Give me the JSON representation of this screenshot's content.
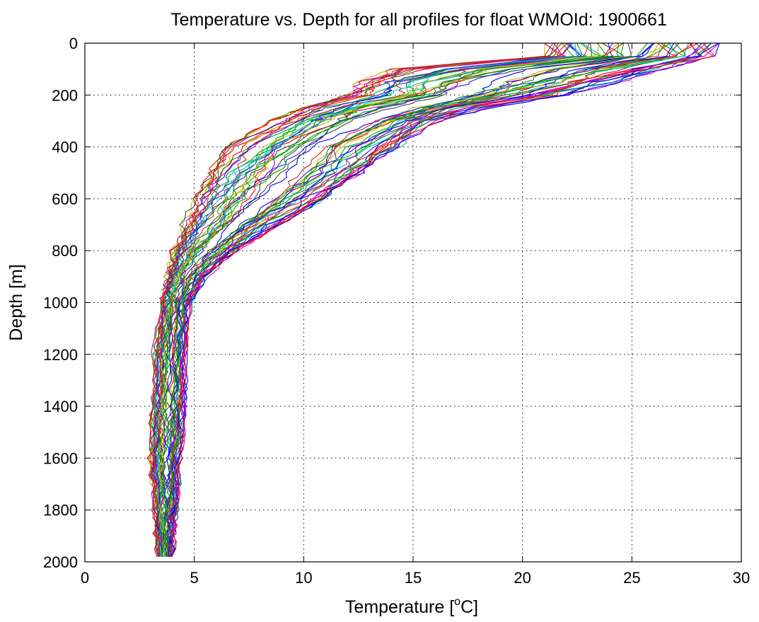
{
  "chart_data": {
    "type": "line",
    "title": "Temperature vs. Depth for all profiles for float WMOId: 1900661",
    "xlabel": "Temperature [",
    "xlabel_sup": "o",
    "xlabel_end": "C]",
    "ylabel": "Depth [m]",
    "xlim": [
      0,
      30
    ],
    "ylim": [
      2000,
      0
    ],
    "y_reversed": true,
    "grid": true,
    "xticks": [
      0,
      5,
      10,
      15,
      20,
      25,
      30
    ],
    "yticks": [
      0,
      200,
      400,
      600,
      800,
      1000,
      1200,
      1400,
      1600,
      1800,
      2000
    ],
    "xtick_labels": [
      "0",
      "5",
      "10",
      "15",
      "20",
      "25",
      "30"
    ],
    "ytick_labels": [
      "0",
      "200",
      "400",
      "600",
      "800",
      "1000",
      "1200",
      "1400",
      "1600",
      "1800",
      "2000"
    ],
    "series_colors": [
      "#0000ff",
      "#ff0000",
      "#00aa00",
      "#cc00cc",
      "#00bbbb",
      "#bbbb00",
      "#444444",
      "#2020dd",
      "#dd2020",
      "#009900"
    ],
    "profile_count": 60,
    "profile_depths": [
      0,
      50,
      100,
      150,
      200,
      250,
      300,
      400,
      500,
      600,
      700,
      800,
      900,
      1000,
      1200,
      1400,
      1600,
      1800,
      1980
    ],
    "profile_envelope": {
      "warm_edge": [
        29.0,
        28.8,
        26.5,
        24.5,
        22.0,
        18.5,
        16.5,
        14.5,
        13.0,
        11.0,
        9.0,
        7.0,
        5.5,
        4.8,
        4.6,
        4.6,
        4.4,
        4.2,
        4.0
      ],
      "cold_edge": [
        21.0,
        21.0,
        14.0,
        12.5,
        12.0,
        10.0,
        8.5,
        6.5,
        5.5,
        5.0,
        4.5,
        4.0,
        3.7,
        3.5,
        3.2,
        3.1,
        3.0,
        3.2,
        3.3
      ]
    }
  }
}
